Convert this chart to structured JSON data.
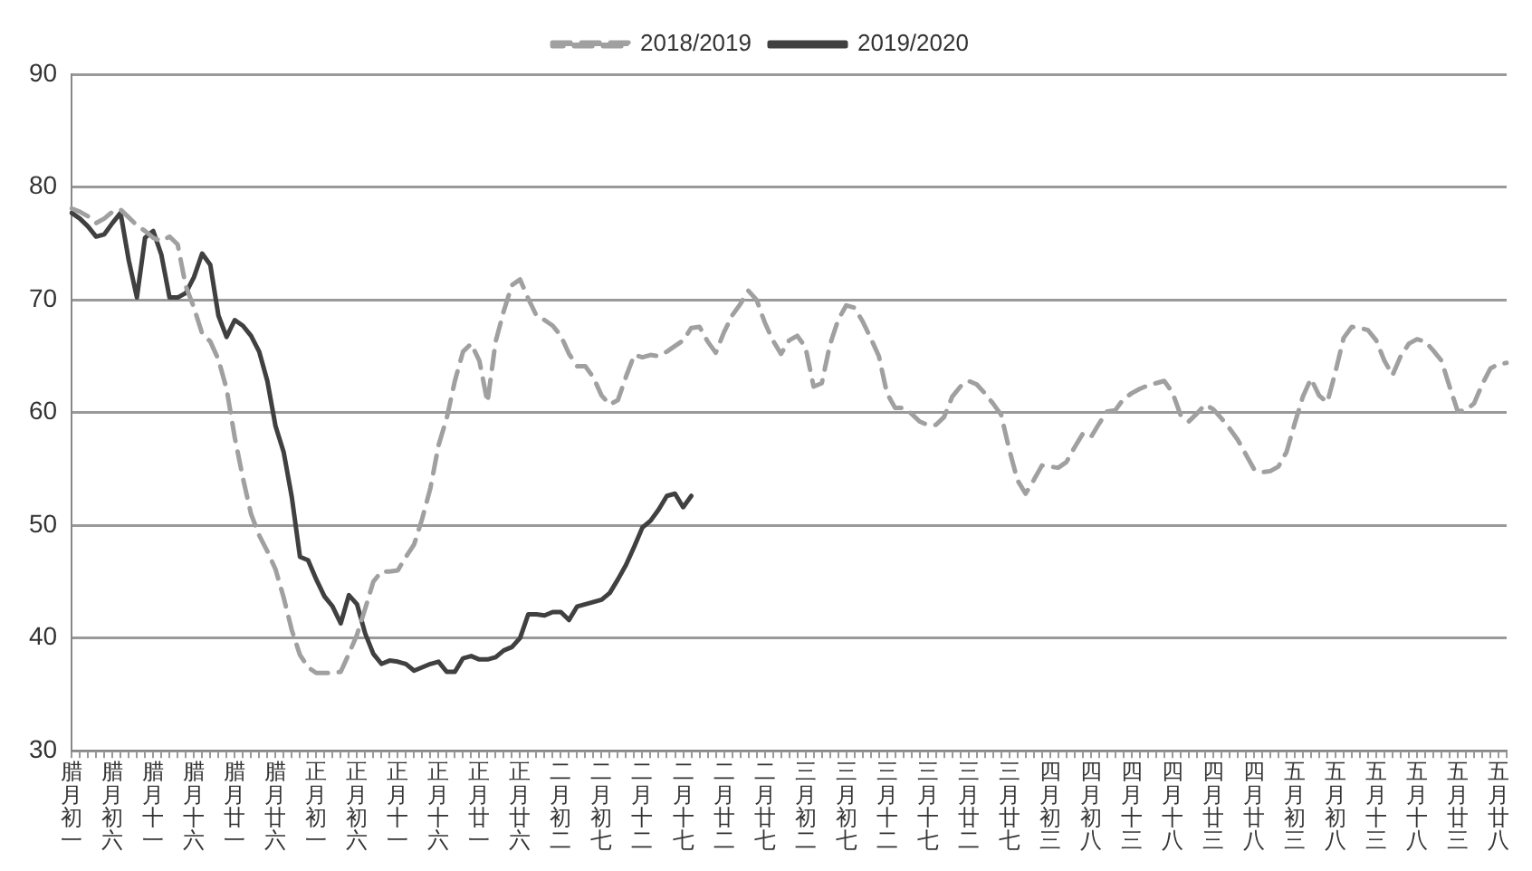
{
  "chart_data": {
    "type": "line",
    "categories": [
      "腊月初一",
      null,
      null,
      null,
      null,
      "腊月初六",
      null,
      null,
      null,
      null,
      "腊月十一",
      null,
      null,
      null,
      null,
      "腊月十六",
      null,
      null,
      null,
      null,
      "腊月廿一",
      null,
      null,
      null,
      null,
      "腊月廿六",
      null,
      null,
      null,
      null,
      "正月初一",
      null,
      null,
      null,
      null,
      "正月初六",
      null,
      null,
      null,
      null,
      "正月十一",
      null,
      null,
      null,
      null,
      "正月十六",
      null,
      null,
      null,
      null,
      "正月廿一",
      null,
      null,
      null,
      null,
      "正月廿六",
      null,
      null,
      null,
      null,
      "二月初二",
      null,
      null,
      null,
      null,
      "二月初七",
      null,
      null,
      null,
      null,
      "二月十二",
      null,
      null,
      null,
      null,
      "二月十七",
      null,
      null,
      null,
      null,
      "二月廿二",
      null,
      null,
      null,
      null,
      "二月廿七",
      null,
      null,
      null,
      null,
      "三月初二",
      null,
      null,
      null,
      null,
      "三月初七",
      null,
      null,
      null,
      null,
      "三月十二",
      null,
      null,
      null,
      null,
      "三月十七",
      null,
      null,
      null,
      null,
      "三月廿二",
      null,
      null,
      null,
      null,
      "三月廿七",
      null,
      null,
      null,
      null,
      "四月初三",
      null,
      null,
      null,
      null,
      "四月初八",
      null,
      null,
      null,
      null,
      "四月十三",
      null,
      null,
      null,
      null,
      "四月十八",
      null,
      null,
      null,
      null,
      "四月廿三",
      null,
      null,
      null,
      null,
      "四月廿八",
      null,
      null,
      null,
      null,
      "五月初三",
      null,
      null,
      null,
      null,
      "五月初八",
      null,
      null,
      null,
      null,
      "五月十三",
      null,
      null,
      null,
      null,
      "五月十八",
      null,
      null,
      null,
      null,
      "五月廿三",
      null,
      null,
      null,
      null,
      "五月廿八",
      null
    ],
    "series": [
      {
        "name": "2018/2019",
        "color": "#a0a0a0",
        "line_style": "dashed",
        "values": [
          78.1,
          77.8,
          77.4,
          76.8,
          77.2,
          77.8,
          78.0,
          77.3,
          76.6,
          76.1,
          75.5,
          75.2,
          75.6,
          74.9,
          71.2,
          69.3,
          67.0,
          66.3,
          64.7,
          62.1,
          57.8,
          54.2,
          51.0,
          49.1,
          47.7,
          46.1,
          43.6,
          40.7,
          38.5,
          37.4,
          36.9,
          36.9,
          36.9,
          37.0,
          38.6,
          40.3,
          42.6,
          45.0,
          45.9,
          45.9,
          46.0,
          47.2,
          48.3,
          50.6,
          53.3,
          57.1,
          59.5,
          62.8,
          65.4,
          66.1,
          64.6,
          60.9,
          66.3,
          69.0,
          71.3,
          71.8,
          70.1,
          68.6,
          68.2,
          67.7,
          66.8,
          65.2,
          64.1,
          64.1,
          63.1,
          61.5,
          60.7,
          61.1,
          63.2,
          65.1,
          64.9,
          65.1,
          65.0,
          65.4,
          65.9,
          66.4,
          67.5,
          67.6,
          66.3,
          65.3,
          67.1,
          68.6,
          69.6,
          70.8,
          70.0,
          68.0,
          66.4,
          65.2,
          66.4,
          66.8,
          65.8,
          62.3,
          62.6,
          66.0,
          68.2,
          69.5,
          69.3,
          68.1,
          66.6,
          65.0,
          61.7,
          60.4,
          60.4,
          59.9,
          59.2,
          58.9,
          58.9,
          59.6,
          61.4,
          62.3,
          62.8,
          62.5,
          61.7,
          60.8,
          59.8,
          56.7,
          54.0,
          52.8,
          54.0,
          55.3,
          55.2,
          55.1,
          55.6,
          56.9,
          58.1,
          57.8,
          59.0,
          60.1,
          60.2,
          61.2,
          61.7,
          62.1,
          62.4,
          62.6,
          62.8,
          61.8,
          59.8,
          59.2,
          59.9,
          60.7,
          60.3,
          59.5,
          58.6,
          57.6,
          56.3,
          55.0,
          54.7,
          54.8,
          55.2,
          56.5,
          59.0,
          61.4,
          63.0,
          61.5,
          60.9,
          63.6,
          66.6,
          67.6,
          67.5,
          67.3,
          66.4,
          64.6,
          63.3,
          65.0,
          66.1,
          66.5,
          66.3,
          65.5,
          64.6,
          62.3,
          60.1,
          60.2,
          60.8,
          62.5,
          63.9,
          64.3,
          64.4
        ]
      },
      {
        "name": "2019/2020",
        "color": "#404040",
        "line_style": "solid",
        "values": [
          77.7,
          77.2,
          76.5,
          75.6,
          75.8,
          76.8,
          77.7,
          73.5,
          70.2,
          75.5,
          76.1,
          74.0,
          70.2,
          70.2,
          70.6,
          72.0,
          74.1,
          73.1,
          68.6,
          66.7,
          68.2,
          67.7,
          66.8,
          65.4,
          62.8,
          58.8,
          56.5,
          52.5,
          47.2,
          46.9,
          45.2,
          43.7,
          42.8,
          41.3,
          43.8,
          43.0,
          40.4,
          38.6,
          37.7,
          38.0,
          37.9,
          37.7,
          37.1,
          37.4,
          37.7,
          37.9,
          37.0,
          37.0,
          38.2,
          38.4,
          38.1,
          38.1,
          38.3,
          38.9,
          39.2,
          40.0,
          42.1,
          42.1,
          42.0,
          42.3,
          42.3,
          41.6,
          42.8,
          43.0,
          43.2,
          43.4,
          44.0,
          45.2,
          46.5,
          48.1,
          49.8,
          50.4,
          51.4,
          52.6,
          52.8,
          51.6,
          52.6,
          null,
          null,
          null,
          null,
          null,
          null,
          null,
          null,
          null,
          null,
          null,
          null,
          null,
          null,
          null,
          null,
          null,
          null,
          null,
          null,
          null,
          null,
          null,
          null,
          null,
          null,
          null,
          null,
          null,
          null,
          null,
          null,
          null,
          null,
          null,
          null,
          null,
          null,
          null,
          null,
          null,
          null,
          null,
          null,
          null,
          null,
          null,
          null,
          null,
          null,
          null,
          null,
          null,
          null,
          null,
          null,
          null,
          null,
          null,
          null,
          null,
          null,
          null,
          null,
          null,
          null,
          null,
          null,
          null,
          null,
          null,
          null,
          null,
          null,
          null,
          null,
          null,
          null,
          null,
          null,
          null,
          null,
          null,
          null,
          null,
          null,
          null,
          null,
          null,
          null,
          null,
          null,
          null,
          null,
          null,
          null,
          null,
          null,
          null,
          null
        ]
      }
    ],
    "ylim": [
      30,
      90
    ],
    "yticks": [
      30,
      40,
      50,
      60,
      70,
      80,
      90
    ],
    "grid": "y",
    "legend": "top",
    "marker": "none"
  }
}
